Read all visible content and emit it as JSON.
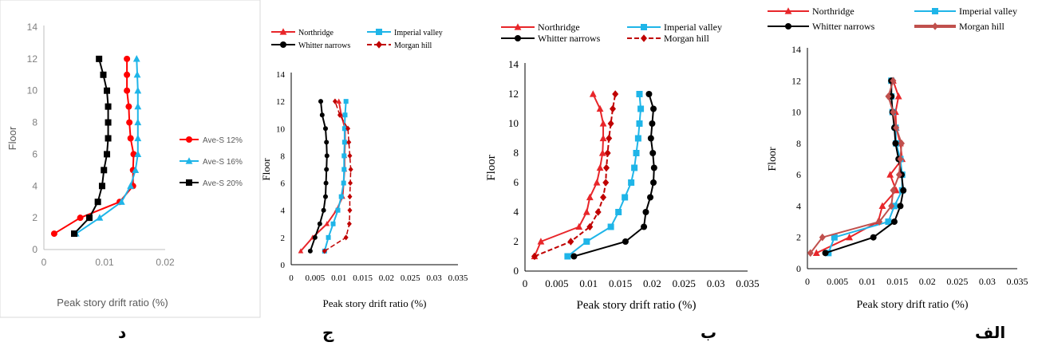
{
  "panel_letters": [
    "د",
    "ج",
    "ب",
    "الف"
  ],
  "chart_data": [
    {
      "type": "line",
      "xlabel": "Peak story drift ratio (%)",
      "ylabel": "Floor",
      "xlim": [
        0,
        0.02
      ],
      "ylim": [
        0,
        14
      ],
      "xticks": [
        "0",
        "0.01",
        "0.02"
      ],
      "yticks": [
        "0",
        "2",
        "4",
        "6",
        "8",
        "10",
        "12",
        "14"
      ],
      "grid": false,
      "legend": "right",
      "series": [
        {
          "name": "Ave-S 12%",
          "color": "#ff0000",
          "marker": "circle",
          "x": [
            0.0017,
            0.006,
            0.0125,
            0.0147,
            0.0147,
            0.0148,
            0.0143,
            0.0141,
            0.014,
            0.0137,
            0.0137,
            0.0137
          ],
          "y": [
            1,
            2,
            3,
            4,
            5,
            6,
            7,
            8,
            9,
            10,
            11,
            12
          ]
        },
        {
          "name": "Ave-S 16%",
          "color": "#1fb5e8",
          "marker": "triangle",
          "x": [
            0.0053,
            0.0092,
            0.0128,
            0.0143,
            0.0151,
            0.0155,
            0.0155,
            0.0155,
            0.0155,
            0.0155,
            0.0154,
            0.0153
          ],
          "y": [
            1,
            2,
            3,
            4,
            5,
            6,
            7,
            8,
            9,
            10,
            11,
            12
          ]
        },
        {
          "name": "Ave-S 20%",
          "color": "#000000",
          "marker": "square",
          "x": [
            0.005,
            0.0075,
            0.0089,
            0.0096,
            0.0099,
            0.0104,
            0.0106,
            0.0106,
            0.0106,
            0.0104,
            0.0098,
            0.0091
          ],
          "y": [
            1,
            2,
            3,
            4,
            5,
            6,
            7,
            8,
            9,
            10,
            11,
            12
          ]
        }
      ]
    },
    {
      "type": "line",
      "xlabel": "Peak story drift ratio (%)",
      "ylabel": "Floor",
      "xlim": [
        0,
        0.035
      ],
      "ylim": [
        0,
        14
      ],
      "xticks": [
        "0",
        "0.005",
        "0.01",
        "0.015",
        "0.02",
        "0.025",
        "0.03",
        "0.035"
      ],
      "yticks": [
        "0",
        "2",
        "4",
        "6",
        "8",
        "10",
        "12",
        "14"
      ],
      "grid": false,
      "legend": "top",
      "series": [
        {
          "name": "Northridge",
          "color": "#e8262a",
          "marker": "triangle",
          "dash": false,
          "x": [
            0.002,
            0.0045,
            0.0075,
            0.0095,
            0.0108,
            0.011,
            0.0112,
            0.0112,
            0.0113,
            0.0113,
            0.0105,
            0.01
          ],
          "y": [
            1,
            2,
            3,
            4,
            5,
            6,
            7,
            8,
            9,
            10,
            11,
            12
          ]
        },
        {
          "name": "Imperial valley",
          "color": "#1fb5e8",
          "marker": "square",
          "dash": false,
          "x": [
            0.007,
            0.0078,
            0.0088,
            0.0098,
            0.0105,
            0.011,
            0.0111,
            0.0111,
            0.0112,
            0.0112,
            0.0113,
            0.0115
          ],
          "y": [
            1,
            2,
            3,
            4,
            5,
            6,
            7,
            8,
            9,
            10,
            11,
            12
          ]
        },
        {
          "name": "Whitter narrows",
          "color": "#000000",
          "marker": "circle",
          "dash": false,
          "x": [
            0.004,
            0.005,
            0.006,
            0.0068,
            0.0072,
            0.0073,
            0.0074,
            0.0075,
            0.0074,
            0.0072,
            0.0065,
            0.0062
          ],
          "y": [
            1,
            2,
            3,
            4,
            5,
            6,
            7,
            8,
            9,
            10,
            11,
            12
          ]
        },
        {
          "name": "Morgan hill",
          "color": "#c00000",
          "marker": "diamond",
          "dash": true,
          "x": [
            0.007,
            0.0115,
            0.0122,
            0.0123,
            0.0123,
            0.0124,
            0.0125,
            0.0123,
            0.0121,
            0.0119,
            0.0102,
            0.0092
          ],
          "y": [
            1,
            2,
            3,
            4,
            5,
            6,
            7,
            8,
            9,
            10,
            11,
            12
          ]
        }
      ]
    },
    {
      "type": "line",
      "xlabel": "Peak story drift ratio (%)",
      "ylabel": "Floor",
      "xlim": [
        0,
        0.035
      ],
      "ylim": [
        0,
        14
      ],
      "xticks": [
        "0",
        "0.005",
        "0.01",
        "0.015",
        "0.02",
        "0.025",
        "0.03",
        "0.035"
      ],
      "yticks": [
        "0",
        "2",
        "4",
        "6",
        "8",
        "10",
        "12",
        "14"
      ],
      "grid": false,
      "legend": "top",
      "series": [
        {
          "name": "Northridge",
          "color": "#e8262a",
          "marker": "triangle",
          "dash": false,
          "x": [
            0.0015,
            0.0025,
            0.0085,
            0.0097,
            0.0102,
            0.0113,
            0.0118,
            0.0122,
            0.0123,
            0.0123,
            0.0118,
            0.0107
          ],
          "y": [
            1,
            2,
            3,
            4,
            5,
            6,
            7,
            8,
            9,
            10,
            11,
            12
          ]
        },
        {
          "name": "Imperial valley",
          "color": "#1fb5e8",
          "marker": "square",
          "dash": false,
          "x": [
            0.0067,
            0.0097,
            0.0135,
            0.0147,
            0.0157,
            0.0167,
            0.0172,
            0.0175,
            0.0178,
            0.018,
            0.0182,
            0.018
          ],
          "y": [
            1,
            2,
            3,
            4,
            5,
            6,
            7,
            8,
            9,
            10,
            11,
            12
          ]
        },
        {
          "name": "Whitter narrows",
          "color": "#000000",
          "marker": "circle",
          "dash": false,
          "x": [
            0.0077,
            0.0158,
            0.0187,
            0.019,
            0.0197,
            0.0202,
            0.0203,
            0.0201,
            0.0198,
            0.02,
            0.0202,
            0.0195
          ],
          "y": [
            1,
            2,
            3,
            4,
            5,
            6,
            7,
            8,
            9,
            10,
            11,
            12
          ]
        },
        {
          "name": "Morgan hill",
          "color": "#c00000",
          "marker": "diamond",
          "dash": true,
          "x": [
            0.0015,
            0.0072,
            0.0102,
            0.0115,
            0.0123,
            0.0127,
            0.0128,
            0.013,
            0.0132,
            0.0135,
            0.0138,
            0.0142
          ],
          "y": [
            1,
            2,
            3,
            4,
            5,
            6,
            7,
            8,
            9,
            10,
            11,
            12
          ]
        }
      ]
    },
    {
      "type": "line",
      "xlabel": "Peak story drift ratio (%)",
      "ylabel": "Floor",
      "xlim": [
        0,
        0.035
      ],
      "ylim": [
        0,
        14
      ],
      "xticks": [
        "0",
        "0.005",
        "0.01",
        "0.015",
        "0.02",
        "0.025",
        "0.03",
        "0.035"
      ],
      "yticks": [
        "0",
        "2",
        "4",
        "6",
        "8",
        "10",
        "12",
        "14"
      ],
      "grid": false,
      "legend": "top",
      "series": [
        {
          "name": "Northridge",
          "color": "#e8262a",
          "marker": "triangle",
          "dash": false,
          "x": [
            0.0015,
            0.007,
            0.0118,
            0.0125,
            0.0148,
            0.0138,
            0.0158,
            0.0155,
            0.0148,
            0.0147,
            0.0152,
            0.0143
          ],
          "y": [
            1,
            2,
            3,
            4,
            5,
            6,
            7,
            8,
            9,
            10,
            11,
            12
          ]
        },
        {
          "name": "Imperial valley",
          "color": "#1fb5e8",
          "marker": "square",
          "dash": false,
          "x": [
            0.0035,
            0.0045,
            0.0135,
            0.0145,
            0.0158,
            0.0158,
            0.0155,
            0.0148,
            0.0147,
            0.0142,
            0.014,
            0.014
          ],
          "y": [
            1,
            2,
            3,
            4,
            5,
            6,
            7,
            8,
            9,
            10,
            11,
            12
          ]
        },
        {
          "name": "Whitter narrows",
          "color": "#000000",
          "marker": "circle",
          "dash": false,
          "x": [
            0.003,
            0.011,
            0.0145,
            0.0155,
            0.016,
            0.0157,
            0.0152,
            0.0147,
            0.0145,
            0.0142,
            0.014,
            0.014
          ],
          "y": [
            1,
            2,
            3,
            4,
            5,
            6,
            7,
            8,
            9,
            10,
            11,
            12
          ]
        },
        {
          "name": "Morgan hill",
          "color": "#c0504d",
          "marker": "diamond",
          "dash": false,
          "x": [
            0.0005,
            0.0025,
            0.012,
            0.014,
            0.0143,
            0.0153,
            0.0155,
            0.0157,
            0.0148,
            0.0143,
            0.0135,
            0.0143
          ],
          "y": [
            1,
            2,
            3,
            4,
            5,
            6,
            7,
            8,
            9,
            10,
            11,
            12
          ]
        }
      ]
    }
  ]
}
